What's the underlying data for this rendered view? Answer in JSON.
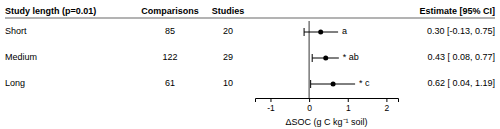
{
  "chart_data": {
    "type": "forest",
    "title": "Study length (p=0.01)",
    "col_comparisons": "Comparisons",
    "col_studies": "Studies",
    "col_estimate": "Estimate [95% CI]",
    "xlabel": "ΔSOC (g C kg⁻¹ soil)",
    "rows": [
      {
        "label": "Short",
        "comparisons": 85,
        "studies": 20,
        "mean": 0.3,
        "ci_low": -0.13,
        "ci_high": 0.75,
        "annotation": "a",
        "estimate_str": "0.30 [-0.13, 0.75]"
      },
      {
        "label": "Medium",
        "comparisons": 122,
        "studies": 29,
        "mean": 0.43,
        "ci_low": 0.08,
        "ci_high": 0.77,
        "annotation": "* ab",
        "estimate_str": "0.43 [ 0.08, 0.77]"
      },
      {
        "label": "Long",
        "comparisons": 61,
        "studies": 10,
        "mean": 0.62,
        "ci_low": 0.04,
        "ci_high": 1.19,
        "annotation": "* c",
        "estimate_str": "0.62 [ 0.04, 1.19]"
      }
    ],
    "reference_x": 0,
    "xlim": [
      -1.4,
      2.3
    ],
    "xticks": [
      -1,
      0,
      1,
      2
    ],
    "background_color": "#ffffff"
  }
}
